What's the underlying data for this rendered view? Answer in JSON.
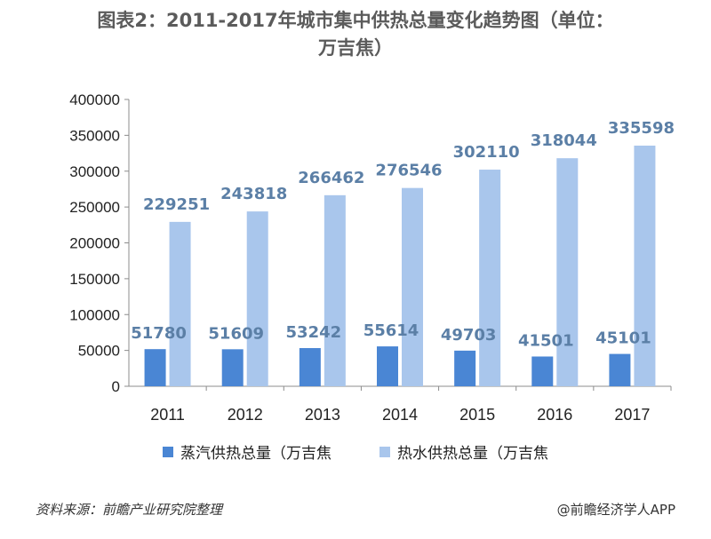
{
  "title": {
    "line1": "图表2：2011-2017年城市集中供热总量变化趋势图（单位：",
    "line2": "万吉焦）"
  },
  "colors": {
    "steam": "#4a86d4",
    "water": "#a9c6ec",
    "label": "#5b7fa6",
    "axis": "#8c8c8c"
  },
  "chart_data": {
    "type": "bar",
    "title": "2011-2017年城市集中供热总量变化趋势图（单位：万吉焦）",
    "categories": [
      "2011",
      "2012",
      "2013",
      "2014",
      "2015",
      "2016",
      "2017"
    ],
    "series": [
      {
        "name": "蒸汽供热总量（万吉焦",
        "values": [
          51780,
          51609,
          53242,
          55614,
          49703,
          41501,
          45101
        ]
      },
      {
        "name": "热水供热总量（万吉焦",
        "values": [
          229251,
          243818,
          266462,
          276546,
          302110,
          318044,
          335598
        ]
      }
    ],
    "ylim": [
      0,
      400000
    ],
    "yticks": [
      "0",
      "50000",
      "100000",
      "150000",
      "200000",
      "250000",
      "300000",
      "350000",
      "400000"
    ],
    "grid": false,
    "legend": "bottom"
  },
  "footer": {
    "source": "资料来源：前瞻产业研究院整理",
    "credit": "@前瞻经济学人APP"
  }
}
